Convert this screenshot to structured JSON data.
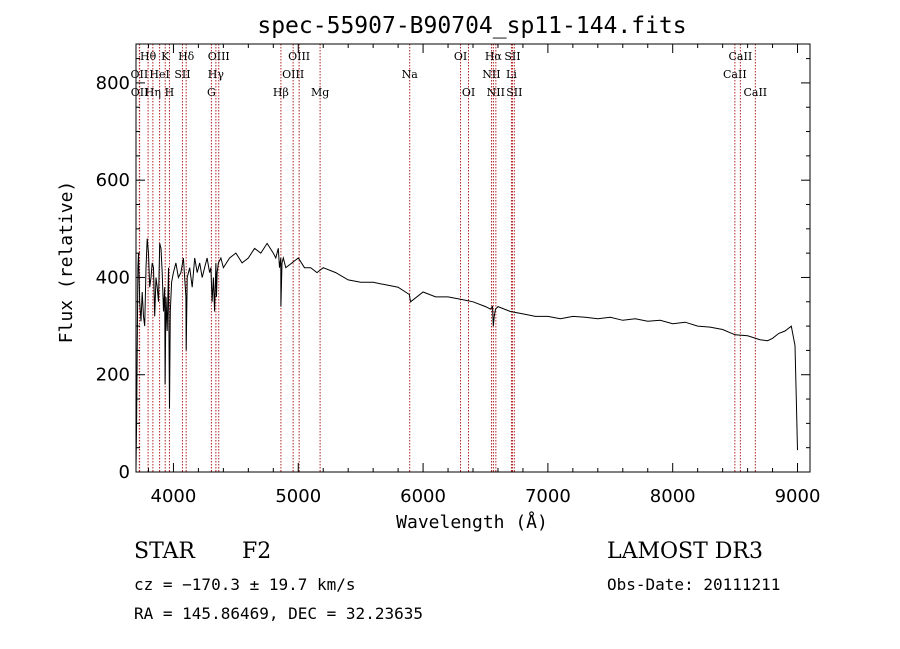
{
  "chart_data": {
    "type": "line",
    "title": "spec-55907-B90704_sp11-144.fits",
    "xlabel": "Wavelength (Å)",
    "ylabel": "Flux (relative)",
    "xlim": [
      3700,
      9100
    ],
    "ylim": [
      0,
      880
    ],
    "x_ticks": [
      4000,
      5000,
      6000,
      7000,
      8000,
      9000
    ],
    "y_ticks": [
      0,
      200,
      400,
      600,
      800
    ],
    "series": [
      {
        "name": "spectrum",
        "x": [
          3700,
          3705,
          3710,
          3715,
          3720,
          3725,
          3730,
          3740,
          3750,
          3760,
          3770,
          3780,
          3790,
          3800,
          3810,
          3820,
          3830,
          3840,
          3850,
          3860,
          3870,
          3880,
          3890,
          3900,
          3910,
          3920,
          3930,
          3933,
          3940,
          3950,
          3960,
          3968,
          3975,
          3985,
          4000,
          4020,
          4040,
          4060,
          4080,
          4100,
          4102,
          4110,
          4130,
          4150,
          4170,
          4190,
          4210,
          4230,
          4250,
          4270,
          4290,
          4300,
          4310,
          4320,
          4330,
          4340,
          4345,
          4350,
          4360,
          4380,
          4400,
          4450,
          4500,
          4550,
          4600,
          4650,
          4700,
          4750,
          4800,
          4820,
          4840,
          4850,
          4860,
          4861,
          4870,
          4880,
          4900,
          4950,
          5000,
          5050,
          5100,
          5150,
          5200,
          5300,
          5400,
          5500,
          5600,
          5700,
          5800,
          5890,
          5900,
          6000,
          6100,
          6200,
          6300,
          6400,
          6500,
          6540,
          6556,
          6563,
          6570,
          6580,
          6600,
          6700,
          6800,
          6900,
          7000,
          7100,
          7200,
          7300,
          7400,
          7500,
          7600,
          7700,
          7800,
          7900,
          8000,
          8100,
          8200,
          8300,
          8400,
          8500,
          8600,
          8700,
          8760,
          8800,
          8850,
          8900,
          8950,
          8980,
          8990,
          9000
        ],
        "y": [
          5,
          100,
          250,
          420,
          450,
          400,
          350,
          310,
          370,
          320,
          300,
          420,
          480,
          450,
          380,
          400,
          430,
          420,
          320,
          400,
          380,
          350,
          470,
          460,
          410,
          330,
          380,
          180,
          360,
          290,
          420,
          130,
          330,
          390,
          410,
          430,
          400,
          410,
          440,
          360,
          250,
          400,
          420,
          380,
          440,
          410,
          430,
          400,
          420,
          440,
          410,
          420,
          350,
          400,
          330,
          430,
          360,
          410,
          430,
          440,
          420,
          440,
          450,
          430,
          440,
          460,
          450,
          470,
          450,
          440,
          460,
          420,
          440,
          340,
          430,
          440,
          420,
          430,
          440,
          420,
          420,
          410,
          420,
          410,
          395,
          390,
          390,
          385,
          380,
          365,
          350,
          370,
          360,
          360,
          355,
          350,
          340,
          335,
          340,
          300,
          320,
          335,
          340,
          330,
          325,
          320,
          320,
          315,
          320,
          318,
          315,
          318,
          312,
          315,
          310,
          312,
          305,
          308,
          300,
          298,
          293,
          282,
          280,
          272,
          270,
          275,
          285,
          290,
          300,
          260,
          150,
          45
        ]
      }
    ],
    "spectral_lines": [
      {
        "label": "Hθ",
        "wavelength": 3797,
        "row": 1
      },
      {
        "label": "OII",
        "wavelength": 3727,
        "row": 2
      },
      {
        "label": "OII",
        "wavelength": 3729,
        "row": 3
      },
      {
        "label": "K",
        "wavelength": 3934,
        "row": 1
      },
      {
        "label": "HeI",
        "wavelength": 3889,
        "row": 2
      },
      {
        "label": "Hη",
        "wavelength": 3835,
        "row": 3
      },
      {
        "label": "Hδ",
        "wavelength": 4102,
        "row": 1
      },
      {
        "label": "SII",
        "wavelength": 4072,
        "row": 2
      },
      {
        "label": "H",
        "wavelength": 3968,
        "row": 3
      },
      {
        "label": "OIII",
        "wavelength": 4363,
        "row": 1
      },
      {
        "label": "Hγ",
        "wavelength": 4340,
        "row": 2
      },
      {
        "label": "G",
        "wavelength": 4304,
        "row": 3
      },
      {
        "label": "OIII",
        "wavelength": 5007,
        "row": 1
      },
      {
        "label": "OIII",
        "wavelength": 4959,
        "row": 2
      },
      {
        "label": "Hβ",
        "wavelength": 4861,
        "row": 3
      },
      {
        "label": "Mg",
        "wavelength": 5175,
        "row": 3
      },
      {
        "label": "Na",
        "wavelength": 5893,
        "row": 2
      },
      {
        "label": "OI",
        "wavelength": 6300,
        "row": 1
      },
      {
        "label": "OI",
        "wavelength": 6364,
        "row": 3
      },
      {
        "label": "Hα",
        "wavelength": 6563,
        "row": 1
      },
      {
        "label": "NII",
        "wavelength": 6548,
        "row": 2
      },
      {
        "label": "NII",
        "wavelength": 6583,
        "row": 3
      },
      {
        "label": "SII",
        "wavelength": 6716,
        "row": 1
      },
      {
        "label": "Li",
        "wavelength": 6708,
        "row": 2
      },
      {
        "label": "SII",
        "wavelength": 6731,
        "row": 3
      },
      {
        "label": "CaII",
        "wavelength": 8542,
        "row": 1
      },
      {
        "label": "CaII",
        "wavelength": 8498,
        "row": 2
      },
      {
        "label": "CaII",
        "wavelength": 8662,
        "row": 3
      }
    ]
  },
  "info": {
    "class": "STAR",
    "subclass": "F2",
    "survey": "LAMOST DR3",
    "cz": "cz = −170.3 ± 19.7 km/s",
    "obs_date": "Obs-Date: 20111211",
    "radec": "RA = 145.86469, DEC =  32.23635"
  },
  "colors": {
    "spectrum": "#000000",
    "line_marker": "#b22222"
  }
}
